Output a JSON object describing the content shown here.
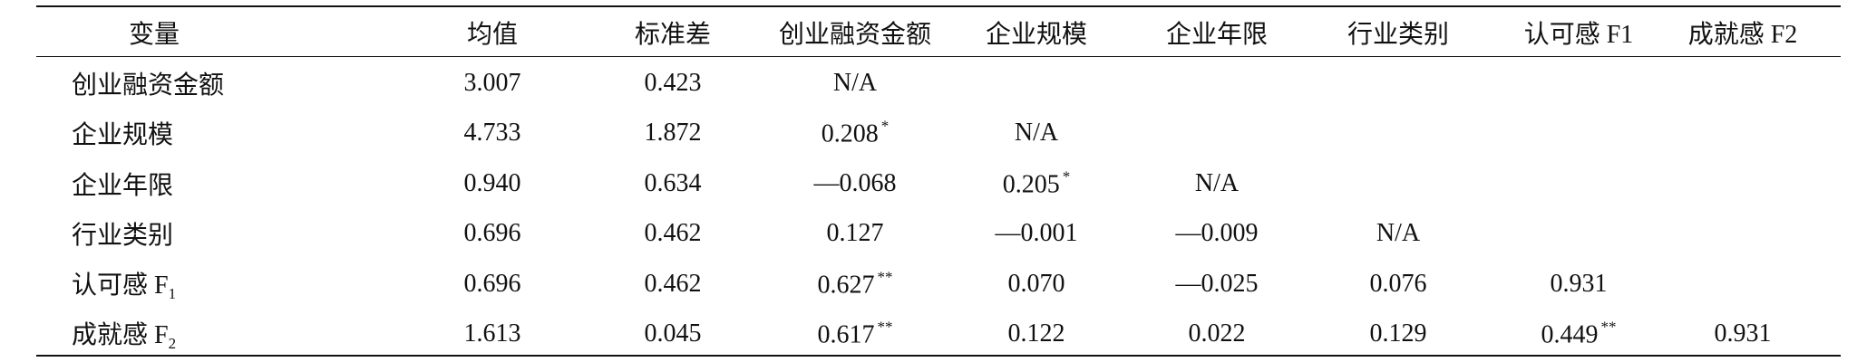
{
  "table": {
    "header": [
      "变量",
      "均值",
      "标准差",
      "创业融资金额",
      "企业规模",
      "企业年限",
      "行业类别",
      "认可感 F1",
      "成就感 F2"
    ],
    "rows": [
      {
        "label": {
          "text": "创业融资金额"
        },
        "cells": [
          {
            "text": "3.007"
          },
          {
            "text": "0.423"
          },
          {
            "text": "N/A"
          }
        ]
      },
      {
        "label": {
          "text": "企业规模"
        },
        "cells": [
          {
            "text": "4.733"
          },
          {
            "text": "1.872"
          },
          {
            "text": "0.208",
            "sup": "*"
          },
          {
            "text": "N/A"
          }
        ]
      },
      {
        "label": {
          "text": "企业年限"
        },
        "cells": [
          {
            "text": "0.940"
          },
          {
            "text": "0.634"
          },
          {
            "text": "—0.068"
          },
          {
            "text": "0.205",
            "sup": "*"
          },
          {
            "text": "N/A"
          }
        ]
      },
      {
        "label": {
          "text": "行业类别"
        },
        "cells": [
          {
            "text": "0.696"
          },
          {
            "text": "0.462"
          },
          {
            "text": "0.127"
          },
          {
            "text": "—0.001"
          },
          {
            "text": "—0.009"
          },
          {
            "text": "N/A"
          }
        ]
      },
      {
        "label": {
          "text": "认可感 F",
          "sub": "1"
        },
        "cells": [
          {
            "text": "0.696"
          },
          {
            "text": "0.462"
          },
          {
            "text": "0.627",
            "sup": "**"
          },
          {
            "text": "0.070"
          },
          {
            "text": "—0.025"
          },
          {
            "text": "0.076"
          },
          {
            "text": "0.931"
          }
        ]
      },
      {
        "label": {
          "text": "成就感 F",
          "sub": "2"
        },
        "cells": [
          {
            "text": "1.613"
          },
          {
            "text": "0.045"
          },
          {
            "text": "0.617",
            "sup": "**"
          },
          {
            "text": "0.122"
          },
          {
            "text": "0.022"
          },
          {
            "text": "0.129"
          },
          {
            "text": "0.449",
            "sup": "**"
          },
          {
            "text": "0.931"
          }
        ]
      }
    ]
  }
}
